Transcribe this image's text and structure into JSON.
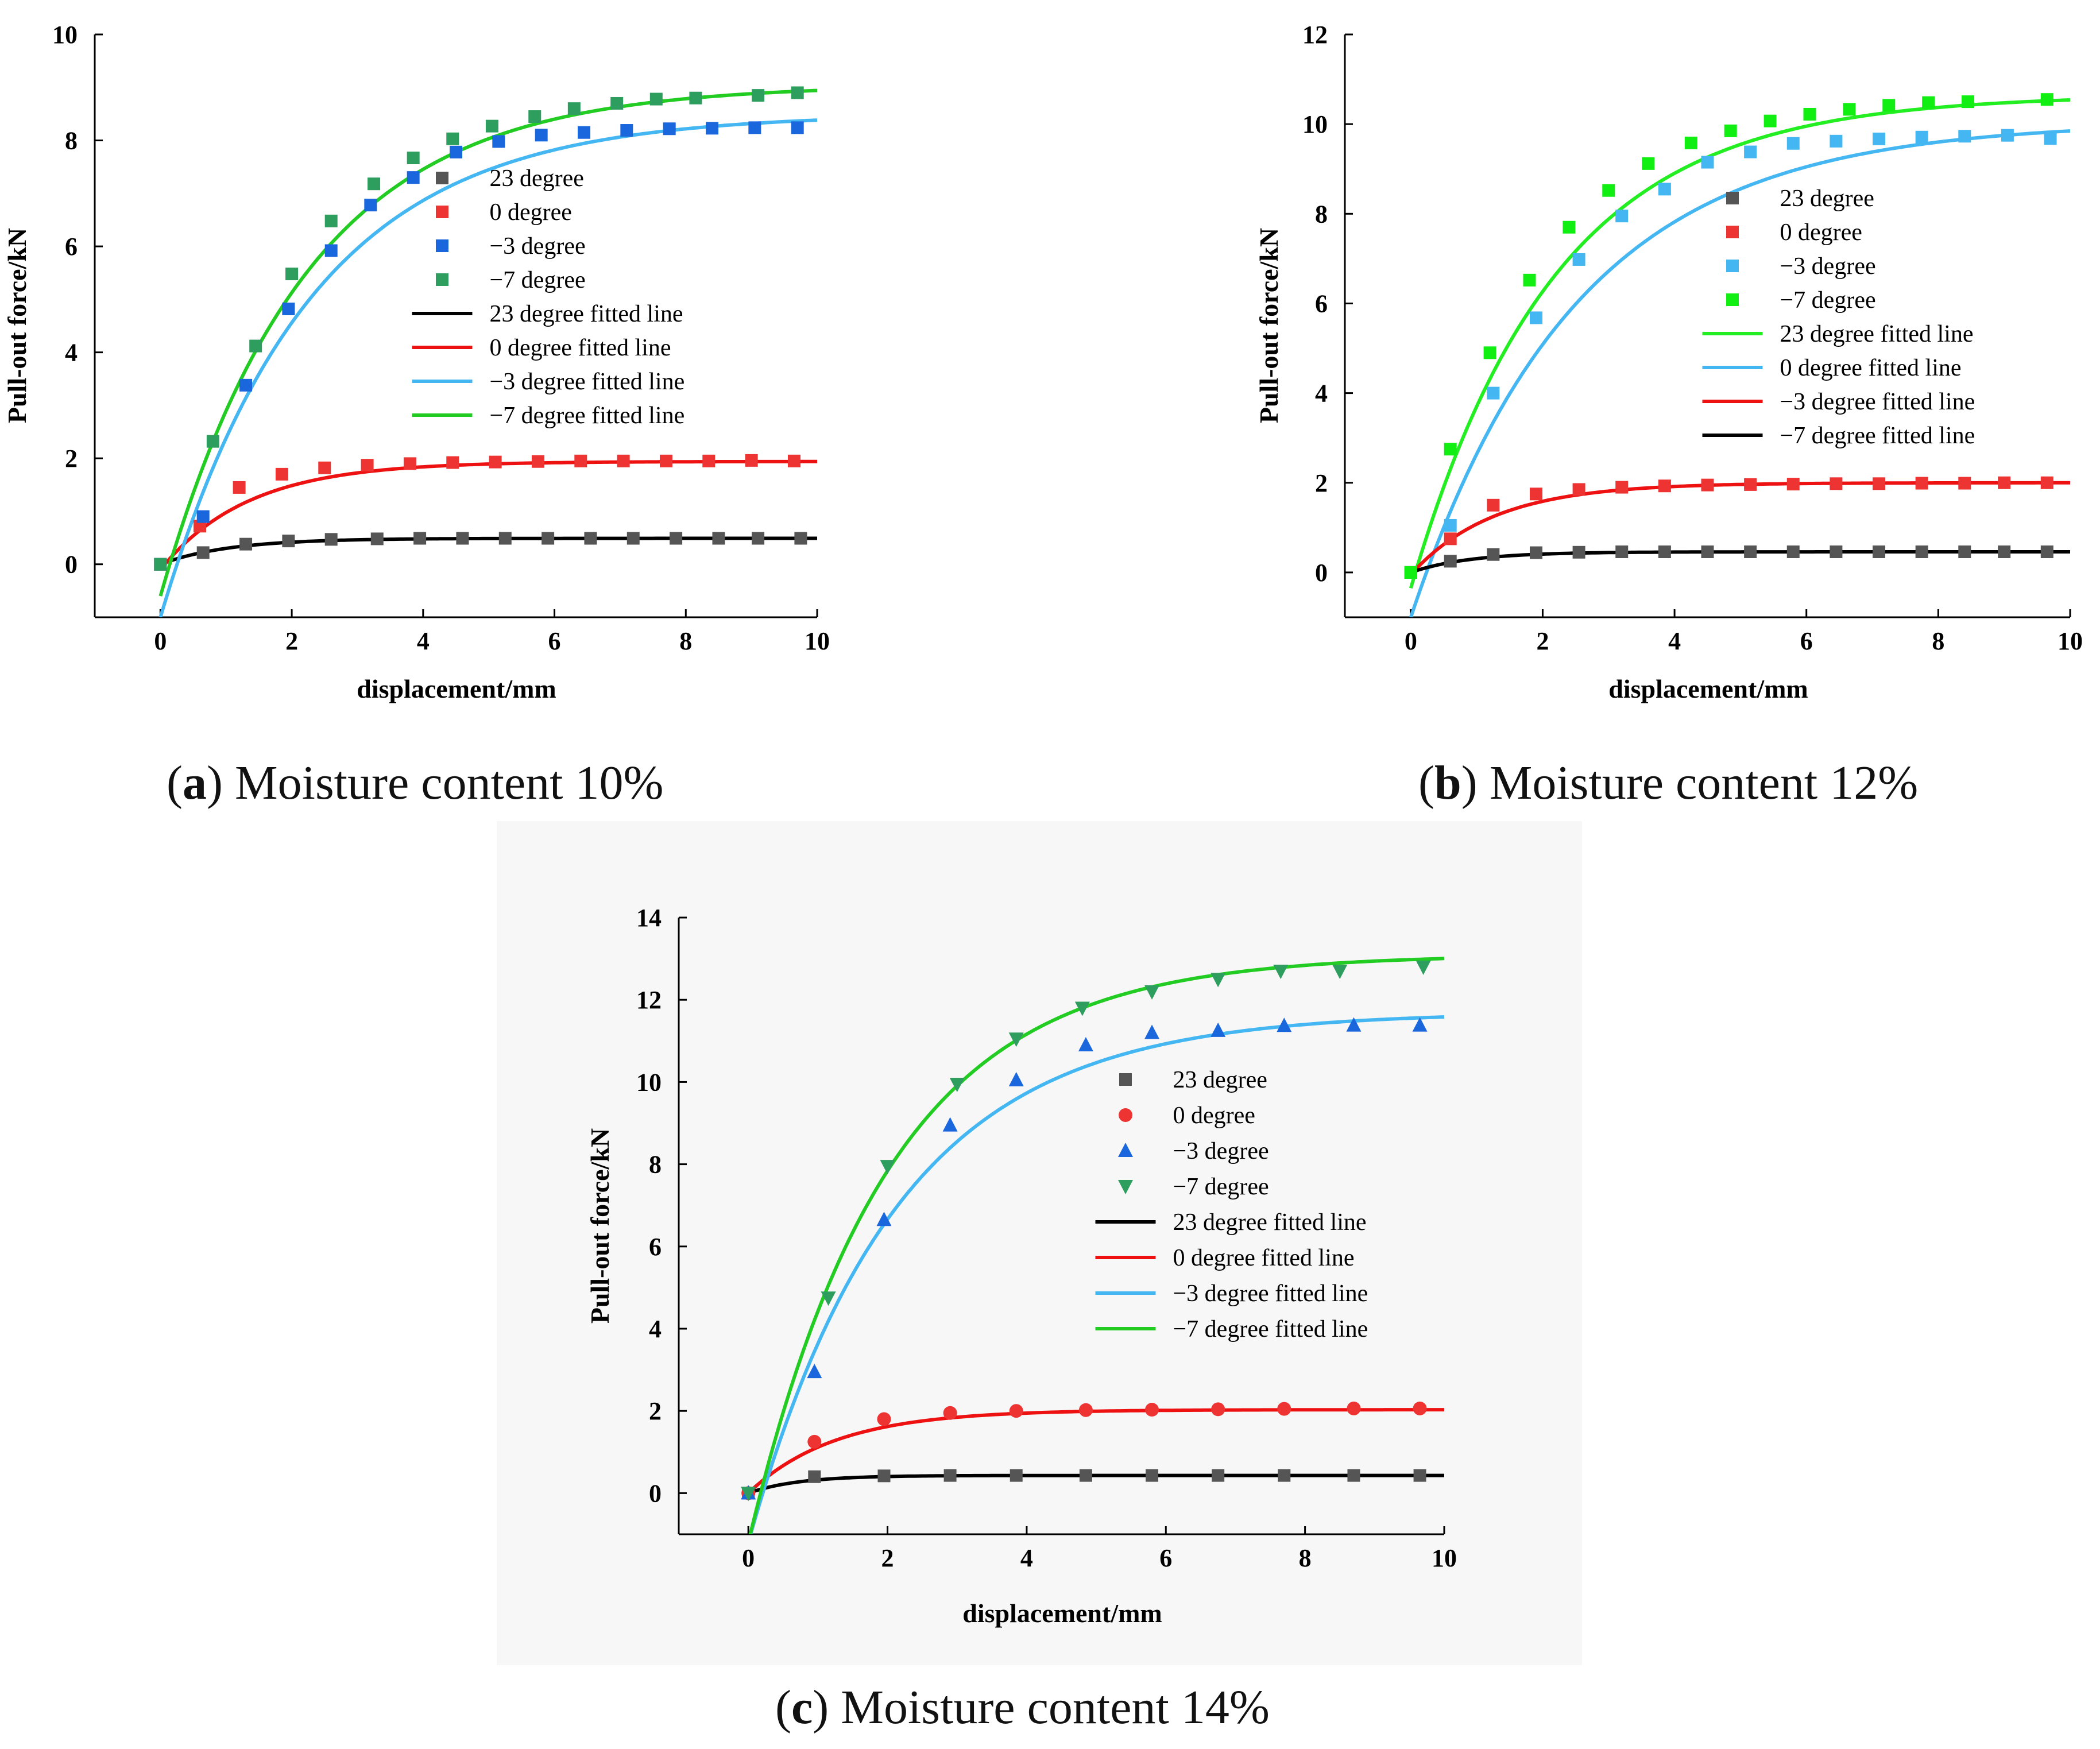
{
  "chart_data": [
    {
      "type": "line",
      "id": "a",
      "panel_letter": "a",
      "caption_text": "Moisture content 10%",
      "xlabel": "displacement/mm",
      "ylabel": "Pull-out force/kN",
      "xlim": [
        -1,
        10
      ],
      "ylim": [
        -1,
        10
      ],
      "xticks": [
        0,
        2,
        4,
        6,
        8,
        10
      ],
      "yticks": [
        0,
        2,
        4,
        6,
        8,
        10
      ],
      "legend_position": "upper-middle",
      "series": [
        {
          "name": "23 degree",
          "kind": "scatter",
          "marker": "square",
          "color": "#555555",
          "x": [
            0,
            0.65,
            1.3,
            1.95,
            2.6,
            3.3,
            3.95,
            4.6,
            5.25,
            5.9,
            6.55,
            7.2,
            7.85,
            8.5,
            9.1,
            9.75
          ],
          "y": [
            0,
            0.22,
            0.38,
            0.44,
            0.47,
            0.48,
            0.49,
            0.49,
            0.49,
            0.49,
            0.49,
            0.49,
            0.49,
            0.49,
            0.49,
            0.49
          ]
        },
        {
          "name": "0 degree",
          "kind": "scatter",
          "marker": "square",
          "color": "#ee3333",
          "x": [
            0,
            0.6,
            1.2,
            1.85,
            2.5,
            3.15,
            3.8,
            4.45,
            5.1,
            5.75,
            6.4,
            7.05,
            7.7,
            8.35,
            9.0,
            9.65
          ],
          "y": [
            0,
            0.72,
            1.45,
            1.7,
            1.82,
            1.87,
            1.9,
            1.92,
            1.93,
            1.94,
            1.95,
            1.95,
            1.95,
            1.95,
            1.96,
            1.95
          ]
        },
        {
          "name": "−3 degree",
          "kind": "scatter",
          "marker": "square",
          "color": "#1a66dd",
          "x": [
            0,
            0.65,
            1.3,
            1.95,
            2.6,
            3.2,
            3.85,
            4.5,
            5.15,
            5.8,
            6.45,
            7.1,
            7.75,
            8.4,
            9.05,
            9.7
          ],
          "y": [
            0,
            0.9,
            3.38,
            4.82,
            5.92,
            6.78,
            7.3,
            7.78,
            7.98,
            8.1,
            8.15,
            8.19,
            8.22,
            8.23,
            8.24,
            8.24
          ]
        },
        {
          "name": "−7 degree",
          "kind": "scatter",
          "marker": "square",
          "color": "#2e9e5e",
          "x": [
            0,
            0.8,
            1.45,
            2.0,
            2.6,
            3.25,
            3.85,
            4.45,
            5.05,
            5.7,
            6.3,
            6.95,
            7.55,
            8.15,
            9.1,
            9.7
          ],
          "y": [
            0,
            2.32,
            4.12,
            5.48,
            6.48,
            7.18,
            7.67,
            8.03,
            8.27,
            8.45,
            8.6,
            8.7,
            8.78,
            8.8,
            8.85,
            8.9
          ]
        },
        {
          "name": "23 degree fitted line",
          "kind": "line",
          "color": "#000000",
          "fit": {
            "a": 0.49,
            "b": 0.49,
            "c": 0.95
          }
        },
        {
          "name": "0 degree fitted line",
          "kind": "line",
          "color": "#ee1111",
          "fit": {
            "a": 1.94,
            "b": 2.04,
            "c": 0.75
          }
        },
        {
          "name": "−3 degree fitted line",
          "kind": "line",
          "color": "#44b6f2",
          "fit": {
            "a": 8.5,
            "b": 9.5,
            "c": 0.44
          }
        },
        {
          "name": "−7 degree fitted line",
          "kind": "line",
          "color": "#22cc22",
          "fit": {
            "a": 9.05,
            "b": 9.65,
            "c": 0.45
          }
        }
      ]
    },
    {
      "type": "line",
      "id": "b",
      "panel_letter": "b",
      "caption_text": "Moisture content 12%",
      "xlabel": "displacement/mm",
      "ylabel": "Pull-out force/kN",
      "xlim": [
        -1,
        10
      ],
      "ylim": [
        -1,
        12
      ],
      "xticks": [
        0,
        2,
        4,
        6,
        8,
        10
      ],
      "yticks": [
        0,
        2,
        4,
        6,
        8,
        10,
        12
      ],
      "legend_position": "right-middle",
      "series": [
        {
          "name": "23 degree",
          "kind": "scatter",
          "marker": "square",
          "color": "#555555",
          "x": [
            0,
            0.6,
            1.25,
            1.9,
            2.55,
            3.2,
            3.85,
            4.5,
            5.15,
            5.8,
            6.45,
            7.1,
            7.75,
            8.4,
            9.0,
            9.65
          ],
          "y": [
            0,
            0.25,
            0.4,
            0.44,
            0.45,
            0.46,
            0.46,
            0.46,
            0.46,
            0.46,
            0.46,
            0.46,
            0.46,
            0.46,
            0.46,
            0.46
          ]
        },
        {
          "name": "0 degree",
          "kind": "scatter",
          "marker": "square",
          "color": "#ee3333",
          "x": [
            0,
            0.6,
            1.25,
            1.9,
            2.55,
            3.2,
            3.85,
            4.5,
            5.15,
            5.8,
            6.45,
            7.1,
            7.75,
            8.4,
            9.0,
            9.65
          ],
          "y": [
            0,
            0.75,
            1.5,
            1.75,
            1.85,
            1.9,
            1.93,
            1.95,
            1.96,
            1.97,
            1.98,
            1.98,
            1.99,
            1.99,
            2.0,
            2.0
          ]
        },
        {
          "name": "−3 degree",
          "kind": "scatter",
          "marker": "square",
          "color": "#44b6f2",
          "x": [
            0,
            0.6,
            1.25,
            1.9,
            2.55,
            3.2,
            3.85,
            4.5,
            5.15,
            5.8,
            6.45,
            7.1,
            7.75,
            8.4,
            9.05,
            9.7
          ],
          "y": [
            0,
            1.05,
            4.0,
            5.68,
            6.98,
            7.95,
            8.55,
            9.15,
            9.38,
            9.57,
            9.62,
            9.67,
            9.71,
            9.73,
            9.75,
            9.68
          ]
        },
        {
          "name": "−7 degree",
          "kind": "scatter",
          "marker": "square",
          "color": "#11ee11",
          "x": [
            0,
            0.6,
            1.2,
            1.8,
            2.4,
            3.0,
            3.6,
            4.25,
            4.85,
            5.45,
            6.05,
            6.65,
            7.25,
            7.85,
            8.45,
            9.65
          ],
          "y": [
            0,
            2.75,
            4.9,
            6.52,
            7.7,
            8.52,
            9.12,
            9.58,
            9.85,
            10.07,
            10.22,
            10.33,
            10.42,
            10.48,
            10.5,
            10.55
          ]
        },
        {
          "name": "23 degree fitted line",
          "kind": "line",
          "color": "#22ee22",
          "fit": {
            "a": 10.65,
            "b": 11.0,
            "c": 0.46
          }
        },
        {
          "name": "0 degree fitted line",
          "kind": "line",
          "color": "#44b6f2",
          "fit": {
            "a": 10.05,
            "b": 11.05,
            "c": 0.4
          }
        },
        {
          "name": "−3 degree fitted line",
          "kind": "line",
          "color": "#ee1111",
          "fit": {
            "a": 2.0,
            "b": 2.05,
            "c": 0.8
          }
        },
        {
          "name": "−7 degree fitted line",
          "kind": "line",
          "color": "#000000",
          "fit": {
            "a": 0.46,
            "b": 0.46,
            "c": 1.1
          }
        }
      ]
    },
    {
      "type": "line",
      "id": "c",
      "panel_letter": "c",
      "caption_text": "Moisture content 14%",
      "xlabel": "displacement/mm",
      "ylabel": "Pull-out force/kN",
      "xlim": [
        -1,
        10
      ],
      "ylim": [
        -1,
        14
      ],
      "xticks": [
        0,
        2,
        4,
        6,
        8,
        10
      ],
      "yticks": [
        0,
        2,
        4,
        6,
        8,
        10,
        12,
        14
      ],
      "legend_position": "right-middle",
      "series": [
        {
          "name": "23 degree",
          "kind": "scatter",
          "marker": "square",
          "color": "#555555",
          "x": [
            0,
            0.95,
            1.95,
            2.9,
            3.85,
            4.85,
            5.8,
            6.75,
            7.7,
            8.7,
            9.65
          ],
          "y": [
            0,
            0.4,
            0.42,
            0.43,
            0.43,
            0.43,
            0.43,
            0.43,
            0.43,
            0.43,
            0.43
          ]
        },
        {
          "name": "0 degree",
          "kind": "scatter",
          "marker": "circle",
          "color": "#ee3333",
          "x": [
            0,
            0.95,
            1.95,
            2.9,
            3.85,
            4.85,
            5.8,
            6.75,
            7.7,
            8.7,
            9.65
          ],
          "y": [
            0,
            1.25,
            1.8,
            1.95,
            2.0,
            2.02,
            2.03,
            2.04,
            2.05,
            2.06,
            2.06
          ]
        },
        {
          "name": "−3 degree",
          "kind": "scatter",
          "marker": "triangle-up",
          "color": "#1a66dd",
          "x": [
            0,
            0.95,
            1.95,
            2.9,
            3.85,
            4.85,
            5.8,
            6.75,
            7.7,
            8.7,
            9.65
          ],
          "y": [
            0,
            2.95,
            6.65,
            8.95,
            10.05,
            10.9,
            11.2,
            11.25,
            11.37,
            11.38,
            11.38
          ]
        },
        {
          "name": "−7 degree",
          "kind": "scatter",
          "marker": "triangle-down",
          "color": "#2e9e5e",
          "x": [
            0,
            1.15,
            2.0,
            3.0,
            3.85,
            4.8,
            5.8,
            6.75,
            7.65,
            8.5,
            9.7
          ],
          "y": [
            0,
            4.75,
            7.95,
            9.95,
            11.05,
            11.8,
            12.2,
            12.5,
            12.7,
            12.7,
            12.8
          ]
        },
        {
          "name": "23 degree fitted line",
          "kind": "line",
          "color": "#000000",
          "fit": {
            "a": 0.43,
            "b": 0.43,
            "c": 1.4
          }
        },
        {
          "name": "0 degree fitted line",
          "kind": "line",
          "color": "#ee1111",
          "fit": {
            "a": 2.03,
            "b": 2.03,
            "c": 0.8
          }
        },
        {
          "name": "−3 degree fitted line",
          "kind": "line",
          "color": "#44b6f2",
          "fit": {
            "a": 11.7,
            "b": 12.9,
            "c": 0.47
          }
        },
        {
          "name": "−7 degree fitted line",
          "kind": "line",
          "color": "#22cc22",
          "fit": {
            "a": 13.1,
            "b": 14.3,
            "c": 0.5
          }
        }
      ]
    }
  ]
}
